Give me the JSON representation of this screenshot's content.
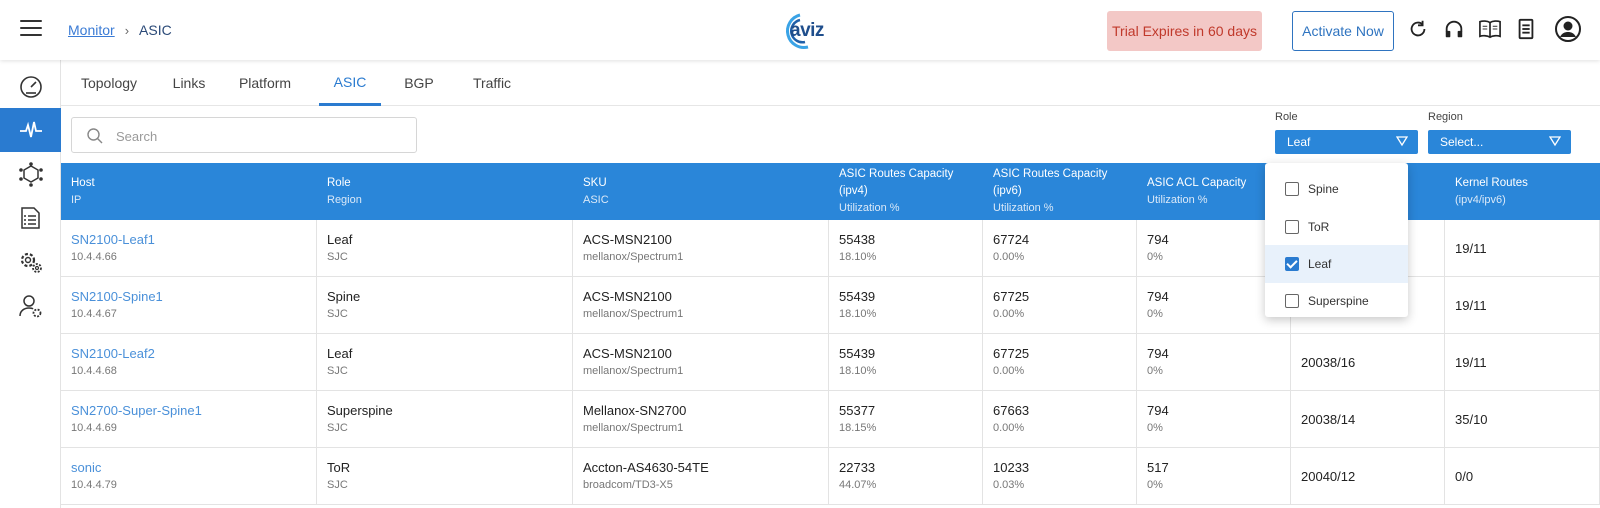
{
  "header": {
    "breadcrumb": {
      "parent": "Monitor",
      "separator": "›",
      "current": "ASIC"
    },
    "logo_text": "aviz",
    "trial_text": "Trial Expires in 60 days",
    "activate_label": "Activate Now",
    "icons": [
      "refresh-icon",
      "headset-icon",
      "book-icon",
      "document-icon",
      "account-icon"
    ]
  },
  "sidebar": {
    "items": [
      {
        "name": "dashboard-gauge-icon"
      },
      {
        "name": "monitor-pulse-icon",
        "active": true
      },
      {
        "name": "network-cube-icon"
      },
      {
        "name": "config-list-icon"
      },
      {
        "name": "settings-gears-icon"
      },
      {
        "name": "user-settings-icon"
      }
    ]
  },
  "tabs": [
    "Topology",
    "Links",
    "Platform",
    "ASIC",
    "BGP",
    "Traffic"
  ],
  "active_tab": "ASIC",
  "search": {
    "placeholder": "Search",
    "value": ""
  },
  "filters": {
    "role": {
      "label": "Role",
      "value": "Leaf"
    },
    "region": {
      "label": "Region",
      "value": "Select..."
    }
  },
  "role_dropdown": {
    "options": [
      {
        "label": "Spine",
        "checked": false
      },
      {
        "label": "ToR",
        "checked": false
      },
      {
        "label": "Leaf",
        "checked": true
      },
      {
        "label": "Superspine",
        "checked": false
      }
    ]
  },
  "table": {
    "columns": [
      {
        "title": "Host",
        "sub": "IP"
      },
      {
        "title": "Role",
        "sub": "Region"
      },
      {
        "title": "SKU",
        "sub": "ASIC"
      },
      {
        "title": "ASIC Routes Capacity",
        "title2": "(ipv4)",
        "sub": "Utilization %"
      },
      {
        "title": "ASIC Routes Capacity",
        "title2": "(ipv6)",
        "sub": "Utilization %"
      },
      {
        "title": "ASIC ACL Capacity",
        "sub": "Utilization %"
      },
      {
        "title": "",
        "sub": ""
      },
      {
        "title": "Kernel Routes",
        "sub": "(ipv4/ipv6)"
      }
    ],
    "rows": [
      {
        "host": "SN2100-Leaf1",
        "ip": "10.4.4.66",
        "role": "Leaf",
        "region": "SJC",
        "sku": "ACS-MSN2100",
        "asic": "mellanox/Spectrum1",
        "v4": "55438",
        "v4u": "18.10%",
        "v6": "67724",
        "v6u": "0.00%",
        "acl": "794",
        "aclu": "0%",
        "routes": "",
        "kernel": "19/11"
      },
      {
        "host": "SN2100-Spine1",
        "ip": "10.4.4.67",
        "role": "Spine",
        "region": "SJC",
        "sku": "ACS-MSN2100",
        "asic": "mellanox/Spectrum1",
        "v4": "55439",
        "v4u": "18.10%",
        "v6": "67725",
        "v6u": "0.00%",
        "acl": "794",
        "aclu": "0%",
        "routes": "",
        "kernel": "19/11"
      },
      {
        "host": "SN2100-Leaf2",
        "ip": "10.4.4.68",
        "role": "Leaf",
        "region": "SJC",
        "sku": "ACS-MSN2100",
        "asic": "mellanox/Spectrum1",
        "v4": "55439",
        "v4u": "18.10%",
        "v6": "67725",
        "v6u": "0.00%",
        "acl": "794",
        "aclu": "0%",
        "routes": "20038/16",
        "kernel": "19/11"
      },
      {
        "host": "SN2700-Super-Spine1",
        "ip": "10.4.4.69",
        "role": "Superspine",
        "region": "SJC",
        "sku": "Mellanox-SN2700",
        "asic": "mellanox/Spectrum1",
        "v4": "55377",
        "v4u": "18.15%",
        "v6": "67663",
        "v6u": "0.00%",
        "acl": "794",
        "aclu": "0%",
        "routes": "20038/14",
        "kernel": "35/10"
      },
      {
        "host": "sonic",
        "ip": "10.4.4.79",
        "role": "ToR",
        "region": "SJC",
        "sku": "Accton-AS4630-54TE",
        "asic": "broadcom/TD3-X5",
        "v4": "22733",
        "v4u": "44.07%",
        "v6": "10233",
        "v6u": "0.03%",
        "acl": "517",
        "aclu": "0%",
        "routes": "20040/12",
        "kernel": "0/0"
      }
    ]
  }
}
